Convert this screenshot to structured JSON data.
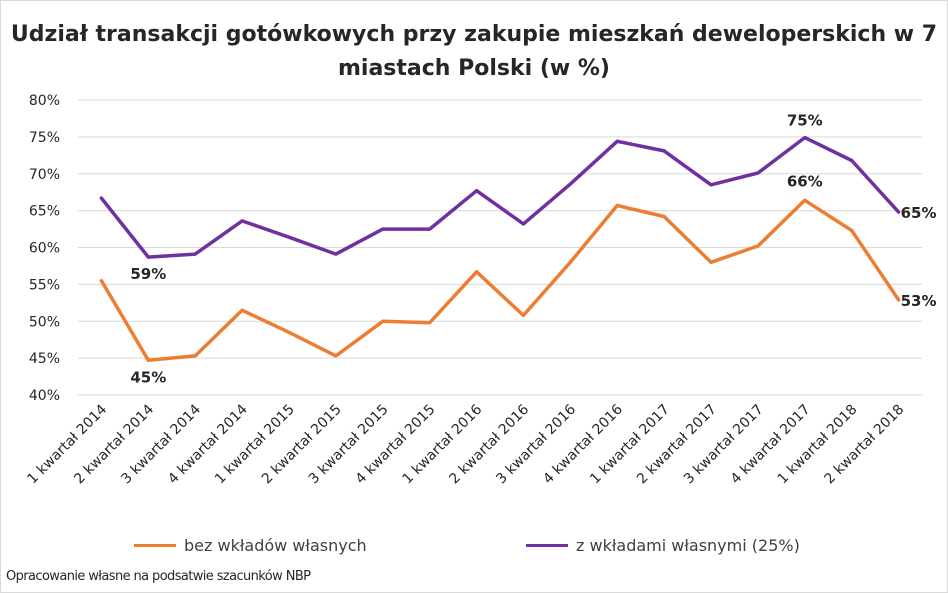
{
  "chart_data": {
    "type": "line",
    "title": "Udział transakcji gotówkowych przy zakupie mieszkań deweloperskich w 7 miastach Polski (w %)",
    "categories": [
      "1 kwartał 2014",
      "2 kwartał 2014",
      "3 kwartał 2014",
      "4 kwartał 2014",
      "1 kwartał 2015",
      "2 kwartał 2015",
      "3 kwartał 2015",
      "4 kwartał 2015",
      "1 kwartał 2016",
      "2 kwartał 2016",
      "3 kwartał 2016",
      "4 kwartał 2016",
      "1 kwartał 2017",
      "2 kwartał 2017",
      "3 kwartał 2017",
      "4 kwartał 2017",
      "1 kwartał 2018",
      "2 kwartał 2018"
    ],
    "series": [
      {
        "name": "bez wkładów własnych",
        "color": "#ed7d31",
        "values": [
          55.5,
          44.7,
          45.3,
          51.5,
          48.5,
          45.3,
          50.0,
          49.8,
          56.7,
          50.8,
          58.0,
          65.7,
          64.2,
          58.0,
          60.2,
          66.4,
          62.3,
          52.9
        ],
        "labels": {
          "1": "45%",
          "15": "66%",
          "17": "53%"
        }
      },
      {
        "name": "z wkładami własnymi (25%)",
        "color": "#7030a0",
        "values": [
          66.7,
          58.7,
          59.1,
          63.6,
          61.4,
          59.1,
          62.5,
          62.5,
          67.7,
          63.2,
          68.6,
          74.4,
          73.1,
          68.5,
          70.1,
          74.9,
          71.8,
          64.8
        ],
        "labels": {
          "1": "59%",
          "15": "75%",
          "17": "65%"
        }
      }
    ],
    "ylim": [
      40,
      80
    ],
    "yticks": [
      "40%",
      "45%",
      "50%",
      "55%",
      "60%",
      "65%",
      "70%",
      "75%",
      "80%"
    ],
    "grid": true,
    "legend": "bottom"
  },
  "source": "Opracowanie własne na podsatwie szacunków NBP"
}
